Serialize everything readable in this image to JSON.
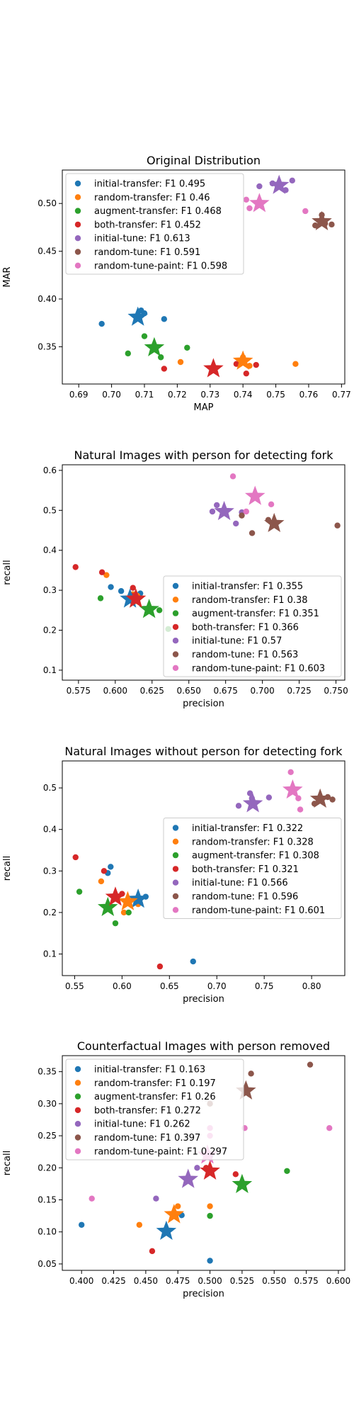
{
  "colors": {
    "initial-transfer": "#1f77b4",
    "random-transfer": "#ff7f0e",
    "augment-transfer": "#2ca02c",
    "both-transfer": "#d62728",
    "initial-tune": "#9467bd",
    "random-tune": "#8c564b",
    "random-tune-paint": "#e377c2"
  },
  "chart_data": [
    {
      "type": "scatter",
      "title": "Original Distribution",
      "xlabel": "MAP",
      "ylabel": "MAR",
      "xlim": [
        0.685,
        0.771
      ],
      "ylim": [
        0.311,
        0.535
      ],
      "xticks": [
        "0.69",
        "0.70",
        "0.71",
        "0.72",
        "0.73",
        "0.74",
        "0.75",
        "0.76",
        "0.77"
      ],
      "yticks": [
        "0.35",
        "0.40",
        "0.45",
        "0.50"
      ],
      "legend_position": "upper-left",
      "series": [
        {
          "key": "initial-transfer",
          "name": "initial-transfer: F1 0.495",
          "points": [
            [
              0.697,
              0.374
            ],
            [
              0.709,
              0.388
            ],
            [
              0.71,
              0.385
            ],
            [
              0.716,
              0.379
            ]
          ],
          "star": [
            0.708,
            0.381
          ]
        },
        {
          "key": "random-transfer",
          "name": "random-transfer: F1 0.46",
          "points": [
            [
              0.721,
              0.334
            ],
            [
              0.74,
              0.339
            ],
            [
              0.742,
              0.33
            ],
            [
              0.756,
              0.332
            ]
          ],
          "star": [
            0.74,
            0.335
          ]
        },
        {
          "key": "augment-transfer",
          "name": "augment-transfer: F1 0.468",
          "points": [
            [
              0.705,
              0.343
            ],
            [
              0.71,
              0.361
            ],
            [
              0.715,
              0.339
            ],
            [
              0.723,
              0.349
            ]
          ],
          "star": [
            0.713,
            0.349
          ]
        },
        {
          "key": "both-transfer",
          "name": "both-transfer: F1 0.452",
          "points": [
            [
              0.716,
              0.327
            ],
            [
              0.738,
              0.332
            ],
            [
              0.741,
              0.322
            ],
            [
              0.744,
              0.331
            ]
          ],
          "star": [
            0.731,
            0.327
          ]
        },
        {
          "key": "initial-tune",
          "name": "initial-tune: F1 0.613",
          "points": [
            [
              0.745,
              0.518
            ],
            [
              0.749,
              0.521
            ],
            [
              0.753,
              0.514
            ],
            [
              0.755,
              0.524
            ]
          ],
          "star": [
            0.751,
            0.519
          ]
        },
        {
          "key": "random-tune",
          "name": "random-tune: F1 0.591",
          "points": [
            [
              0.762,
              0.477
            ],
            [
              0.764,
              0.488
            ],
            [
              0.765,
              0.479
            ],
            [
              0.767,
              0.478
            ]
          ],
          "star": [
            0.764,
            0.481
          ]
        },
        {
          "key": "random-tune-paint",
          "name": "random-tune-paint: F1 0.598",
          "points": [
            [
              0.741,
              0.504
            ],
            [
              0.742,
              0.495
            ],
            [
              0.745,
              0.5
            ],
            [
              0.759,
              0.492
            ]
          ],
          "star": [
            0.745,
            0.5
          ]
        }
      ]
    },
    {
      "type": "scatter",
      "title": "Natural Images with person for detecting fork",
      "xlabel": "precision",
      "ylabel": "recall",
      "xlim": [
        0.564,
        0.756
      ],
      "ylim": [
        0.075,
        0.614
      ],
      "xticks": [
        "0.575",
        "0.600",
        "0.625",
        "0.650",
        "0.675",
        "0.700",
        "0.725",
        "0.750"
      ],
      "yticks": [
        "0.1",
        "0.2",
        "0.3",
        "0.4",
        "0.5",
        "0.6"
      ],
      "legend_position": "lower-right",
      "series": [
        {
          "key": "initial-transfer",
          "name": "initial-transfer: F1 0.355",
          "points": [
            [
              0.597,
              0.308
            ],
            [
              0.604,
              0.298
            ],
            [
              0.617,
              0.292
            ]
          ],
          "star": [
            0.61,
            0.278
          ]
        },
        {
          "key": "random-transfer",
          "name": "random-transfer: F1 0.38",
          "points": [
            [
              0.594,
              0.338
            ],
            [
              0.612,
              0.29
            ],
            [
              0.615,
              0.286
            ]
          ],
          "star": [
            0.614,
            0.278
          ]
        },
        {
          "key": "augment-transfer",
          "name": "augment-transfer: F1 0.351",
          "points": [
            [
              0.59,
              0.28
            ],
            [
              0.614,
              0.273
            ],
            [
              0.63,
              0.25
            ],
            [
              0.636,
              0.203
            ]
          ],
          "star": [
            0.623,
            0.252
          ]
        },
        {
          "key": "both-transfer",
          "name": "both-transfer: F1 0.366",
          "points": [
            [
              0.573,
              0.358
            ],
            [
              0.591,
              0.345
            ],
            [
              0.612,
              0.306
            ],
            [
              0.612,
              0.286
            ]
          ],
          "star": [
            0.614,
            0.278
          ]
        },
        {
          "key": "initial-tune",
          "name": "initial-tune: F1 0.57",
          "points": [
            [
              0.666,
              0.497
            ],
            [
              0.669,
              0.513
            ],
            [
              0.682,
              0.467
            ],
            [
              0.686,
              0.495
            ]
          ],
          "star": [
            0.674,
            0.497
          ]
        },
        {
          "key": "random-tune",
          "name": "random-tune: F1 0.563",
          "points": [
            [
              0.686,
              0.487
            ],
            [
              0.693,
              0.443
            ],
            [
              0.704,
              0.476
            ],
            [
              0.751,
              0.462
            ]
          ],
          "star": [
            0.708,
            0.467
          ]
        },
        {
          "key": "random-tune-paint",
          "name": "random-tune-paint: F1 0.603",
          "points": [
            [
              0.68,
              0.585
            ],
            [
              0.689,
              0.497
            ],
            [
              0.706,
              0.515
            ]
          ],
          "star": [
            0.695,
            0.535
          ]
        }
      ]
    },
    {
      "type": "scatter",
      "title": "Natural Images without person for detecting fork",
      "xlabel": "precision",
      "ylabel": "recall",
      "xlim": [
        0.537,
        0.835
      ],
      "ylim": [
        0.048,
        0.565
      ],
      "xticks": [
        "0.55",
        "0.60",
        "0.65",
        "0.70",
        "0.75",
        "0.80"
      ],
      "yticks": [
        "0.1",
        "0.2",
        "0.3",
        "0.4",
        "0.5"
      ],
      "legend_position": "center-right",
      "series": [
        {
          "key": "initial-transfer",
          "name": "initial-transfer: F1 0.322",
          "points": [
            [
              0.585,
              0.295
            ],
            [
              0.588,
              0.31
            ],
            [
              0.625,
              0.238
            ],
            [
              0.675,
              0.082
            ]
          ],
          "star": [
            0.617,
            0.232
          ]
        },
        {
          "key": "random-transfer",
          "name": "random-transfer: F1 0.328",
          "points": [
            [
              0.578,
              0.275
            ],
            [
              0.602,
              0.2
            ],
            [
              0.617,
              0.22
            ]
          ],
          "star": [
            0.606,
            0.226
          ]
        },
        {
          "key": "augment-transfer",
          "name": "augment-transfer: F1 0.308",
          "points": [
            [
              0.555,
              0.25
            ],
            [
              0.593,
              0.174
            ],
            [
              0.607,
              0.2
            ]
          ],
          "star": [
            0.585,
            0.212
          ]
        },
        {
          "key": "both-transfer",
          "name": "both-transfer: F1 0.321",
          "points": [
            [
              0.551,
              0.333
            ],
            [
              0.581,
              0.3
            ],
            [
              0.6,
              0.245
            ],
            [
              0.64,
              0.07
            ]
          ],
          "star": [
            0.593,
            0.237
          ]
        },
        {
          "key": "initial-tune",
          "name": "initial-tune: F1 0.566",
          "points": [
            [
              0.723,
              0.457
            ],
            [
              0.735,
              0.487
            ],
            [
              0.737,
              0.475
            ],
            [
              0.755,
              0.477
            ]
          ],
          "star": [
            0.738,
            0.462
          ]
        },
        {
          "key": "random-tune",
          "name": "random-tune: F1 0.596",
          "points": [
            [
              0.803,
              0.462
            ],
            [
              0.817,
              0.478
            ],
            [
              0.822,
              0.472
            ]
          ],
          "star": [
            0.809,
            0.473
          ]
        },
        {
          "key": "random-tune-paint",
          "name": "random-tune-paint: F1 0.601",
          "points": [
            [
              0.778,
              0.538
            ],
            [
              0.786,
              0.475
            ],
            [
              0.788,
              0.448
            ]
          ],
          "star": [
            0.78,
            0.495
          ]
        }
      ]
    },
    {
      "type": "scatter",
      "title": "Counterfactual Images with person removed",
      "xlabel": "precision",
      "ylabel": "recall",
      "xlim": [
        0.385,
        0.605
      ],
      "ylim": [
        0.04,
        0.375
      ],
      "xticks": [
        "0.400",
        "0.425",
        "0.450",
        "0.475",
        "0.500",
        "0.525",
        "0.550",
        "0.575",
        "0.600"
      ],
      "yticks": [
        "0.05",
        "0.10",
        "0.15",
        "0.20",
        "0.25",
        "0.30",
        "0.35"
      ],
      "legend_position": "upper-left",
      "series": [
        {
          "key": "initial-transfer",
          "name": "initial-transfer: F1 0.163",
          "points": [
            [
              0.4,
              0.111
            ],
            [
              0.478,
              0.126
            ],
            [
              0.5,
              0.055
            ]
          ],
          "star": [
            0.466,
            0.101
          ]
        },
        {
          "key": "random-transfer",
          "name": "random-transfer: F1 0.197",
          "points": [
            [
              0.445,
              0.111
            ],
            [
              0.475,
              0.14
            ],
            [
              0.5,
              0.14
            ]
          ],
          "star": [
            0.472,
            0.127
          ]
        },
        {
          "key": "augment-transfer",
          "name": "augment-transfer: F1 0.26",
          "points": [
            [
              0.5,
              0.125
            ],
            [
              0.5,
              0.22
            ],
            [
              0.56,
              0.195
            ]
          ],
          "star": [
            0.525,
            0.174
          ]
        },
        {
          "key": "both-transfer",
          "name": "both-transfer: F1 0.272",
          "points": [
            [
              0.455,
              0.07
            ],
            [
              0.497,
              0.2
            ],
            [
              0.52,
              0.19
            ]
          ],
          "star": [
            0.5,
            0.195
          ]
        },
        {
          "key": "initial-tune",
          "name": "initial-tune: F1 0.262",
          "points": [
            [
              0.458,
              0.152
            ],
            [
              0.49,
              0.2
            ],
            [
              0.5,
              0.218
            ]
          ],
          "star": [
            0.483,
            0.182
          ]
        },
        {
          "key": "random-tune",
          "name": "random-tune: F1 0.397",
          "points": [
            [
              0.532,
              0.347
            ],
            [
              0.578,
              0.361
            ],
            [
              0.5,
              0.3
            ]
          ],
          "star": [
            0.528,
            0.32
          ]
        },
        {
          "key": "random-tune-paint",
          "name": "random-tune-paint: F1 0.297",
          "points": [
            [
              0.408,
              0.152
            ],
            [
              0.5,
              0.25
            ],
            [
              0.5,
              0.262
            ],
            [
              0.527,
              0.262
            ],
            [
              0.593,
              0.262
            ]
          ],
          "star": [
            0.498,
            0.22
          ]
        }
      ]
    }
  ]
}
